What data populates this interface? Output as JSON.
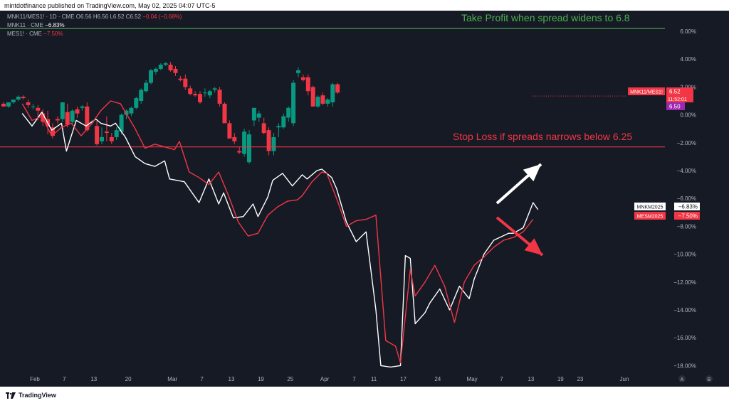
{
  "header": {
    "published_text": "mintdotfinance published on TradingView.com, May 02, 2025 04:07 UTC-5"
  },
  "legend": {
    "main": {
      "symbol": "MNK11/MES1! · 1D · CME",
      "open": "O6.56",
      "high": "H6.56",
      "low": "L6.52",
      "close": "C6.52",
      "change": "−0.04 (−0.68%)"
    },
    "line1": {
      "symbol": "MNK11 · CME",
      "value": "−6.83%"
    },
    "line2": {
      "symbol": "MES1! · CME",
      "value": "−7.50%"
    }
  },
  "annotations": {
    "take_profit": "Take Profit when spread widens to 6.8",
    "stop_loss": "Stop Loss if spreads narrows below 6.25"
  },
  "price_labels": {
    "spread_name": "MNK11/MES1!",
    "spread_value": "6.52",
    "spread_timer": "11:52:01",
    "spread_alt": "6.50",
    "white_name": "MNKM2025",
    "white_value": "−6.83%",
    "red_name": "MESM2025",
    "red_value": "−7.50%"
  },
  "bottom": {
    "brand": "TradingView"
  },
  "colors": {
    "background": "#161a25",
    "up": "#089981",
    "down": "#f23645",
    "take_profit": "#4caf50",
    "stop_loss": "#f23645",
    "white_series": "#ffffff",
    "red_series": "#f23645",
    "axis_text": "#b2b5be"
  },
  "chart_data": {
    "type": "line",
    "yaxis": {
      "ticks": [
        "6.00%",
        "4.00%",
        "2.00%",
        "0.00%",
        "−2.00%",
        "−4.00%",
        "−6.00%",
        "−8.00%",
        "−10.00%",
        "−12.00%",
        "−14.00%",
        "−16.00%",
        "−18.00%"
      ],
      "tick_values": [
        6,
        4,
        2,
        0,
        -2,
        -4,
        -6,
        -8,
        -10,
        -12,
        -14,
        -16,
        -18
      ],
      "ylim": [
        -19.5,
        7.2
      ],
      "scale": "percent"
    },
    "xaxis": {
      "tick_labels": [
        "Feb",
        "7",
        "13",
        "20",
        "Mar",
        "7",
        "13",
        "19",
        "25",
        "Apr",
        "7",
        "11",
        "17",
        "24",
        "May",
        "7",
        "13",
        "19",
        "23",
        "Jun"
      ],
      "tick_days": [
        0,
        6,
        12,
        19,
        28,
        34,
        40,
        46,
        52,
        59,
        65,
        69,
        75,
        82,
        89,
        95,
        101,
        107,
        111,
        120
      ],
      "unit": "days since Feb 1, 2025"
    },
    "series": [
      {
        "name": "MNKM2025",
        "color": "#ffffff",
        "points": [
          [
            -2,
            0.1
          ],
          [
            0,
            -0.8
          ],
          [
            2,
            0.2
          ],
          [
            4,
            -1.1
          ],
          [
            6,
            -0.6
          ],
          [
            7,
            -2.6
          ],
          [
            9,
            -0.4
          ],
          [
            11,
            -0.8
          ],
          [
            13,
            -0.3
          ],
          [
            14,
            -0.6
          ],
          [
            16,
            -0.8
          ],
          [
            17,
            -0.6
          ],
          [
            19,
            -1.6
          ],
          [
            21,
            -3.0
          ],
          [
            23,
            -3.5
          ],
          [
            25,
            -3.7
          ],
          [
            27,
            -3.3
          ],
          [
            28,
            -4.6
          ],
          [
            31,
            -4.8
          ],
          [
            34,
            -6.3
          ],
          [
            36,
            -4.6
          ],
          [
            38,
            -6.4
          ],
          [
            39,
            -5.6
          ],
          [
            41,
            -7.4
          ],
          [
            43,
            -7.3
          ],
          [
            45,
            -6.4
          ],
          [
            46,
            -7.3
          ],
          [
            48,
            -5.9
          ],
          [
            49,
            -4.7
          ],
          [
            51,
            -4.2
          ],
          [
            53,
            -5.1
          ],
          [
            55,
            -4.3
          ],
          [
            56,
            -4.6
          ],
          [
            58,
            -4.0
          ],
          [
            59,
            -3.9
          ],
          [
            61,
            -4.5
          ],
          [
            62,
            -5.3
          ],
          [
            64,
            -7.7
          ],
          [
            66,
            -9.1
          ],
          [
            68,
            -8.4
          ],
          [
            70,
            -14.0
          ],
          [
            71,
            -18.0
          ],
          [
            73,
            -18.1
          ],
          [
            75,
            -18.0
          ],
          [
            76,
            -10.1
          ],
          [
            77,
            -10.3
          ],
          [
            78,
            -15.0
          ],
          [
            80,
            -14.2
          ],
          [
            81,
            -13.5
          ],
          [
            83,
            -12.5
          ],
          [
            85,
            -14.0
          ],
          [
            87,
            -12.3
          ],
          [
            89,
            -13.2
          ],
          [
            90,
            -11.8
          ],
          [
            92,
            -10.0
          ],
          [
            94,
            -9.0
          ],
          [
            97,
            -8.5
          ],
          [
            98,
            -8.5
          ],
          [
            100,
            -8.1
          ],
          [
            102,
            -6.3
          ],
          [
            103,
            -6.8
          ]
        ]
      },
      {
        "name": "MESM2025",
        "color": "#f23645",
        "points": [
          [
            -2,
            0.8
          ],
          [
            0,
            -0.4
          ],
          [
            2,
            -0.1
          ],
          [
            4,
            -1.5
          ],
          [
            6,
            -0.9
          ],
          [
            8,
            -0.6
          ],
          [
            10,
            -1.5
          ],
          [
            12,
            -0.7
          ],
          [
            14,
            0.3
          ],
          [
            16,
            1.0
          ],
          [
            18,
            0.8
          ],
          [
            20,
            -0.4
          ],
          [
            21,
            -1.0
          ],
          [
            23,
            -2.4
          ],
          [
            25,
            -2.1
          ],
          [
            27,
            -2.3
          ],
          [
            29,
            -2.5
          ],
          [
            30,
            -1.9
          ],
          [
            32,
            -4.1
          ],
          [
            34,
            -4.5
          ],
          [
            36,
            -5.0
          ],
          [
            38,
            -4.1
          ],
          [
            40,
            -5.8
          ],
          [
            42,
            -7.7
          ],
          [
            44,
            -8.7
          ],
          [
            46,
            -8.5
          ],
          [
            48,
            -7.2
          ],
          [
            50,
            -6.6
          ],
          [
            52,
            -6.2
          ],
          [
            54,
            -6.1
          ],
          [
            55,
            -5.8
          ],
          [
            57,
            -4.8
          ],
          [
            59,
            -4.1
          ],
          [
            60,
            -4.2
          ],
          [
            62,
            -6.0
          ],
          [
            64,
            -8.0
          ],
          [
            66,
            -7.6
          ],
          [
            68,
            -7.5
          ],
          [
            70,
            -7.2
          ],
          [
            72,
            -16.2
          ],
          [
            74,
            -16.6
          ],
          [
            75,
            -17.8
          ],
          [
            77,
            -11.1
          ],
          [
            78,
            -13.0
          ],
          [
            80,
            -12.0
          ],
          [
            82,
            -10.8
          ],
          [
            84,
            -12.3
          ],
          [
            86,
            -14.9
          ],
          [
            88,
            -12.0
          ],
          [
            90,
            -10.8
          ],
          [
            92,
            -10.2
          ],
          [
            94,
            -9.5
          ],
          [
            96,
            -9.0
          ],
          [
            98,
            -8.8
          ],
          [
            100,
            -8.4
          ],
          [
            102,
            -7.5
          ]
        ]
      }
    ],
    "candles": {
      "name": "MNK11/MES1!",
      "ohlc": [
        [
          1,
          0.8,
          0.9,
          0.6,
          0.6
        ],
        [
          3,
          0.6,
          0.9,
          0.5,
          0.9
        ],
        [
          5,
          0.9,
          1.1,
          0.8,
          1.1
        ],
        [
          7,
          1.1,
          1.4,
          1.0,
          1.3
        ],
        [
          9,
          1.3,
          1.4,
          1.1,
          1.2
        ],
        [
          11,
          0.9,
          1.1,
          0.5,
          0.7
        ],
        [
          13,
          0.6,
          0.8,
          0.4,
          0.6
        ],
        [
          15,
          0.5,
          0.7,
          -0.4,
          0.3
        ],
        [
          17,
          0.1,
          0.4,
          -0.8,
          -0.5
        ],
        [
          19,
          -0.3,
          0.3,
          -1.4,
          -0.8
        ],
        [
          21,
          -0.9,
          -0.6,
          -1.7,
          -1.5
        ],
        [
          23,
          -0.3,
          -0.1,
          -0.6,
          -0.4
        ],
        [
          25,
          -0.3,
          0.9,
          -0.5,
          0.9
        ],
        [
          27,
          0.2,
          0.8,
          -0.9,
          -0.7
        ],
        [
          29,
          -0.5,
          0.4,
          -0.7,
          0.3
        ],
        [
          31,
          0.4,
          0.6,
          -0.2,
          0.1
        ],
        [
          33,
          0.5,
          0.7,
          0.3,
          0.6
        ],
        [
          35,
          0.6,
          0.9,
          -1.2,
          -1.1
        ],
        [
          37,
          -0.5,
          -0.4,
          -0.7,
          -0.5
        ],
        [
          39,
          -0.8,
          -0.4,
          -2.2,
          -2.1
        ],
        [
          41,
          -1.9,
          -0.9,
          -2.1,
          -1.6
        ],
        [
          43,
          -1.2,
          -0.1,
          -1.9,
          -1.3
        ],
        [
          45,
          -1.6,
          -1.3,
          -2.1,
          -1.9
        ],
        [
          47,
          -1.6,
          -0.9,
          -1.8,
          -1.1
        ],
        [
          49,
          -1.2,
          0.1,
          -1.4,
          0.0
        ],
        [
          51,
          0.0,
          0.4,
          -0.3,
          0.3
        ],
        [
          53,
          0.1,
          0.6,
          -0.1,
          0.5
        ],
        [
          55,
          0.5,
          1.3,
          0.4,
          1.2
        ],
        [
          57,
          1.0,
          1.9,
          0.8,
          1.8
        ],
        [
          59,
          1.7,
          2.5,
          1.6,
          2.3
        ],
        [
          61,
          2.3,
          3.3,
          2.2,
          3.2
        ],
        [
          63,
          3.1,
          3.4,
          2.9,
          3.3
        ],
        [
          65,
          3.3,
          3.7,
          3.2,
          3.6
        ],
        [
          67,
          3.6,
          3.8,
          3.5,
          3.7
        ],
        [
          69,
          3.6,
          3.8,
          3.1,
          3.2
        ],
        [
          71,
          3.3,
          3.5,
          2.8,
          3.0
        ],
        [
          73,
          2.6,
          2.8,
          2.4,
          2.5
        ],
        [
          75,
          2.6,
          2.9,
          1.8,
          2.0
        ],
        [
          77,
          1.9,
          2.1,
          1.4,
          1.5
        ],
        [
          79,
          1.5,
          1.7,
          1.3,
          1.4
        ],
        [
          81,
          1.5,
          1.7,
          0.8,
          0.9
        ],
        [
          83,
          1.6,
          1.9,
          1.3,
          1.6
        ],
        [
          85,
          1.4,
          1.8,
          1.2,
          1.7
        ],
        [
          87,
          1.8,
          2.0,
          1.6,
          1.9
        ],
        [
          89,
          1.8,
          2.0,
          0.6,
          0.8
        ],
        [
          91,
          0.8,
          0.9,
          -0.5,
          -0.6
        ],
        [
          93,
          -0.6,
          -0.4,
          -1.6,
          -1.7
        ],
        [
          95,
          -1.6,
          -1.3,
          -2.1,
          -1.9
        ],
        [
          97,
          -2.6,
          -2.3,
          -2.8,
          -2.7
        ],
        [
          99,
          -2.8,
          -1.0,
          -3.0,
          -1.2
        ],
        [
          101,
          -3.4,
          -1.1,
          -3.5,
          -1.4
        ],
        [
          103,
          -0.4,
          0.5,
          -0.8,
          0.5
        ],
        [
          105,
          -0.2,
          0.3,
          -0.5,
          0.1
        ],
        [
          107,
          -0.6,
          -0.2,
          -1.4,
          -1.3
        ],
        [
          109,
          -1.1,
          -0.9,
          -2.9,
          -2.6
        ],
        [
          111,
          -2.6,
          -1.3,
          -2.9,
          -1.6
        ],
        [
          113,
          -0.9,
          -0.6,
          -1.6,
          -0.8
        ],
        [
          115,
          -0.9,
          0.1,
          -1.0,
          -0.1
        ],
        [
          117,
          -0.2,
          0.6,
          -0.5,
          0.5
        ],
        [
          119,
          -0.6,
          2.5,
          -0.8,
          2.3
        ],
        [
          121,
          3.0,
          3.4,
          2.7,
          3.2
        ],
        [
          123,
          2.7,
          2.9,
          2.4,
          2.5
        ],
        [
          125,
          2.7,
          2.9,
          1.4,
          1.7
        ],
        [
          127,
          2.0,
          2.1,
          0.6,
          0.6
        ],
        [
          129,
          0.6,
          1.4,
          0.5,
          1.3
        ],
        [
          131,
          1.4,
          1.6,
          0.7,
          0.8
        ],
        [
          133,
          0.8,
          1.2,
          0.6,
          1.1
        ],
        [
          135,
          0.9,
          2.3,
          0.6,
          2.2
        ],
        [
          137,
          2.2,
          2.3,
          1.5,
          1.6
        ]
      ]
    }
  }
}
